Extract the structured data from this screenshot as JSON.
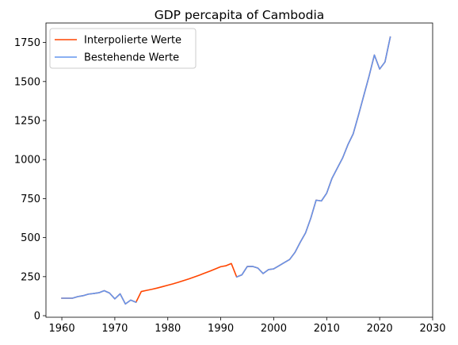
{
  "chart_data": {
    "type": "line",
    "title": "GDP percapita of Cambodia",
    "xlabel": "",
    "ylabel": "",
    "xlim": [
      1957,
      2030
    ],
    "ylim": [
      -10,
      1875
    ],
    "xticks": [
      1960,
      1970,
      1980,
      1990,
      2000,
      2010,
      2020,
      2030
    ],
    "yticks": [
      0,
      250,
      500,
      750,
      1000,
      1250,
      1500,
      1750
    ],
    "grid": false,
    "legend_position": "top-left",
    "series": [
      {
        "name": "Interpolierte Werte",
        "color": "#ff4500",
        "x": [
          1960,
          1961,
          1962,
          1963,
          1964,
          1965,
          1966,
          1967,
          1968,
          1969,
          1970,
          1971,
          1972,
          1973,
          1974,
          1975,
          1976,
          1977,
          1978,
          1979,
          1980,
          1981,
          1982,
          1983,
          1984,
          1985,
          1986,
          1987,
          1988,
          1989,
          1990,
          1991,
          1992,
          1993,
          1994,
          1995,
          1996,
          1997,
          1998,
          1999,
          2000,
          2001,
          2002,
          2003,
          2004,
          2005,
          2006,
          2007,
          2008,
          2009,
          2010,
          2011,
          2012,
          2013,
          2014,
          2015,
          2016,
          2017,
          2018,
          2019,
          2020,
          2021,
          2022
        ],
        "y": [
          112,
          112,
          112,
          122,
          128,
          138,
          142,
          147,
          160,
          145,
          108,
          140,
          75,
          100,
          86,
          155,
          162,
          169,
          177,
          186,
          195,
          204,
          214,
          225,
          236,
          248,
          260,
          273,
          286,
          300,
          314,
          320,
          334,
          248,
          262,
          315,
          316,
          305,
          270,
          295,
          300,
          320,
          340,
          360,
          405,
          470,
          530,
          625,
          740,
          735,
          785,
          880,
          945,
          1010,
          1095,
          1165,
          1285,
          1410,
          1535,
          1670,
          1580,
          1625,
          1785
        ]
      },
      {
        "name": "Bestehende Werte",
        "color": "#6495ed",
        "x": [
          1960,
          1961,
          1962,
          1963,
          1964,
          1965,
          1966,
          1967,
          1968,
          1969,
          1970,
          1971,
          1972,
          1973,
          1974,
          null,
          1993,
          1994,
          1995,
          1996,
          1997,
          1998,
          1999,
          2000,
          2001,
          2002,
          2003,
          2004,
          2005,
          2006,
          2007,
          2008,
          2009,
          2010,
          2011,
          2012,
          2013,
          2014,
          2015,
          2016,
          2017,
          2018,
          2019,
          2020,
          2021,
          2022
        ],
        "y": [
          112,
          112,
          112,
          122,
          128,
          138,
          142,
          147,
          160,
          145,
          108,
          140,
          75,
          100,
          86,
          null,
          248,
          262,
          315,
          316,
          305,
          270,
          295,
          300,
          320,
          340,
          360,
          405,
          470,
          530,
          625,
          740,
          735,
          785,
          880,
          945,
          1010,
          1095,
          1165,
          1285,
          1410,
          1535,
          1670,
          1580,
          1625,
          1785
        ]
      }
    ]
  }
}
